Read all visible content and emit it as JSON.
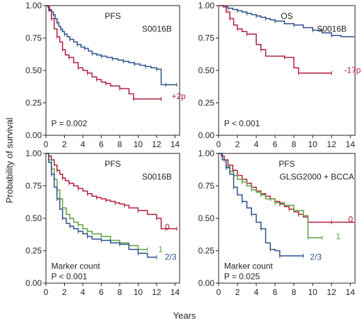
{
  "figure": {
    "ylabel": "Probability of survival",
    "xlabel": "Years"
  },
  "chart_data": [
    {
      "type": "line",
      "title": "PFS",
      "cohort": "S0016B",
      "pvalue": "P = 0.002",
      "marker_label": "",
      "xlim": [
        0,
        14.5
      ],
      "ylim": [
        0,
        1
      ],
      "xticks": [
        "0",
        "2",
        "4",
        "6",
        "8",
        "10",
        "12",
        "14"
      ],
      "yticks": [
        "0.00",
        "0.25",
        "0.50",
        "0.75",
        "1.00"
      ],
      "series": [
        {
          "label": "",
          "color": "#2b4f8a",
          "x": [
            0,
            0.2,
            0.4,
            0.6,
            0.8,
            1.0,
            1.2,
            1.4,
            1.6,
            1.8,
            2.0,
            2.3,
            2.6,
            3.0,
            3.4,
            3.8,
            4.2,
            4.6,
            5.0,
            5.5,
            6.0,
            6.6,
            7.2,
            7.8,
            8.4,
            9.0,
            9.6,
            10.2,
            10.8,
            11.4,
            12.0,
            12.5,
            13.0,
            13.5,
            14.2
          ],
          "y": [
            1.0,
            0.99,
            0.97,
            0.95,
            0.93,
            0.9,
            0.87,
            0.84,
            0.82,
            0.8,
            0.78,
            0.76,
            0.74,
            0.72,
            0.7,
            0.68,
            0.67,
            0.65,
            0.63,
            0.62,
            0.61,
            0.6,
            0.59,
            0.58,
            0.57,
            0.56,
            0.55,
            0.54,
            0.53,
            0.52,
            0.51,
            0.39,
            0.39,
            0.39,
            0.39
          ]
        },
        {
          "label": "+2p",
          "color": "#b01e3c",
          "x": [
            0,
            0.3,
            0.6,
            0.9,
            1.2,
            1.5,
            1.8,
            2.1,
            2.5,
            3.0,
            3.5,
            4.0,
            4.5,
            5.0,
            5.5,
            6.0,
            6.5,
            7.0,
            8.0,
            9.0,
            9.5,
            12.5
          ],
          "y": [
            1.0,
            0.96,
            0.9,
            0.82,
            0.76,
            0.72,
            0.66,
            0.62,
            0.6,
            0.56,
            0.52,
            0.5,
            0.48,
            0.45,
            0.43,
            0.41,
            0.4,
            0.38,
            0.36,
            0.32,
            0.28,
            0.28
          ]
        }
      ]
    },
    {
      "type": "line",
      "title": "OS",
      "cohort": "S0016B",
      "pvalue": "P < 0.001",
      "marker_label": "",
      "xlim": [
        0,
        14.5
      ],
      "ylim": [
        0,
        1
      ],
      "xticks": [
        "0",
        "2",
        "4",
        "6",
        "8",
        "10",
        "12",
        "14"
      ],
      "yticks": [
        "0.00",
        "0.25",
        "0.50",
        "0.75",
        "1.00"
      ],
      "series": [
        {
          "label": "",
          "color": "#2b4f8a",
          "x": [
            0,
            0.5,
            1.0,
            1.5,
            2.0,
            2.5,
            3.0,
            3.5,
            4.0,
            4.5,
            5.0,
            5.5,
            6.0,
            7.0,
            8.0,
            9.0,
            10.0,
            11.0,
            12.0,
            13.0,
            14.5
          ],
          "y": [
            1.0,
            0.99,
            0.98,
            0.97,
            0.96,
            0.95,
            0.94,
            0.93,
            0.92,
            0.91,
            0.9,
            0.89,
            0.88,
            0.86,
            0.85,
            0.83,
            0.81,
            0.79,
            0.77,
            0.76,
            0.76
          ]
        },
        {
          "label": "-17p",
          "color": "#b01e3c",
          "x": [
            0,
            0.8,
            1.2,
            1.6,
            2.0,
            2.5,
            3.0,
            4.0,
            4.5,
            5.0,
            7.0,
            8.0,
            8.5,
            12.0
          ],
          "y": [
            1.0,
            0.95,
            0.9,
            0.85,
            0.82,
            0.8,
            0.78,
            0.7,
            0.66,
            0.61,
            0.6,
            0.52,
            0.48,
            0.48
          ]
        }
      ]
    },
    {
      "type": "line",
      "title": "PFS",
      "cohort": "S0016B",
      "pvalue": "P < 0.001",
      "marker_label": "Marker count",
      "xlim": [
        0,
        14.5
      ],
      "ylim": [
        0,
        1
      ],
      "xticks": [
        "0",
        "2",
        "4",
        "6",
        "8",
        "10",
        "12",
        "14"
      ],
      "yticks": [
        "0.00",
        "0.25",
        "0.50",
        "0.75",
        "1.00"
      ],
      "series": [
        {
          "label": "0",
          "color": "#b01e3c",
          "x": [
            0,
            0.3,
            0.6,
            0.9,
            1.2,
            1.5,
            1.8,
            2.1,
            2.5,
            3.0,
            3.5,
            4.0,
            4.5,
            5.0,
            5.5,
            6.0,
            6.5,
            7.0,
            7.5,
            8.0,
            8.5,
            9.0,
            10.0,
            11.0,
            12.0,
            12.5,
            13.0,
            14.2
          ],
          "y": [
            1.0,
            0.98,
            0.95,
            0.91,
            0.87,
            0.84,
            0.81,
            0.79,
            0.77,
            0.75,
            0.73,
            0.71,
            0.69,
            0.67,
            0.66,
            0.65,
            0.64,
            0.63,
            0.62,
            0.61,
            0.6,
            0.58,
            0.56,
            0.53,
            0.5,
            0.42,
            0.42,
            0.42
          ]
        },
        {
          "label": "1",
          "color": "#5aa33c",
          "x": [
            0,
            0.3,
            0.6,
            0.9,
            1.2,
            1.5,
            1.8,
            2.2,
            2.6,
            3.0,
            3.5,
            4.0,
            4.5,
            5.0,
            6.0,
            7.0,
            8.0,
            9.0,
            10.0,
            11.0
          ],
          "y": [
            1.0,
            0.95,
            0.88,
            0.8,
            0.72,
            0.65,
            0.58,
            0.53,
            0.5,
            0.47,
            0.45,
            0.42,
            0.4,
            0.38,
            0.36,
            0.33,
            0.31,
            0.29,
            0.26,
            0.26
          ]
        },
        {
          "label": "2/3",
          "color": "#2b4f8a",
          "x": [
            0,
            0.3,
            0.6,
            0.9,
            1.2,
            1.5,
            1.8,
            2.2,
            2.6,
            3.0,
            3.5,
            4.0,
            4.5,
            5.0,
            6.0,
            7.0,
            8.0,
            9.0,
            10.0,
            11.0,
            12.0
          ],
          "y": [
            1.0,
            0.93,
            0.84,
            0.74,
            0.65,
            0.57,
            0.5,
            0.46,
            0.44,
            0.42,
            0.4,
            0.38,
            0.36,
            0.34,
            0.33,
            0.31,
            0.3,
            0.26,
            0.23,
            0.2,
            0.2
          ]
        }
      ]
    },
    {
      "type": "line",
      "title": "PFS",
      "cohort": "GLSG2000 + BCCA",
      "pvalue": "P = 0.025",
      "marker_label": "Marker count",
      "xlim": [
        0,
        14.5
      ],
      "ylim": [
        0,
        1
      ],
      "xticks": [
        "0",
        "2",
        "4",
        "6",
        "8",
        "10",
        "12",
        "14"
      ],
      "yticks": [
        "0.00",
        "0.25",
        "0.50",
        "0.75",
        "1.00"
      ],
      "series": [
        {
          "label": "0",
          "color": "#b01e3c",
          "x": [
            0,
            0.3,
            0.6,
            1.0,
            1.5,
            2.0,
            2.5,
            3.0,
            3.5,
            4.0,
            4.5,
            5.0,
            5.5,
            6.0,
            6.5,
            7.0,
            7.5,
            8.0,
            8.5,
            9.0,
            9.5,
            10.0,
            12.0,
            14.5
          ],
          "y": [
            1.0,
            0.98,
            0.95,
            0.91,
            0.87,
            0.83,
            0.8,
            0.77,
            0.74,
            0.71,
            0.69,
            0.67,
            0.65,
            0.63,
            0.61,
            0.59,
            0.57,
            0.55,
            0.53,
            0.51,
            0.47,
            0.47,
            0.47,
            0.47
          ]
        },
        {
          "label": "1",
          "color": "#5aa33c",
          "x": [
            0,
            0.4,
            0.8,
            1.2,
            1.6,
            2.0,
            2.5,
            3.0,
            3.5,
            4.0,
            4.5,
            5.0,
            6.0,
            7.0,
            8.0,
            9.0,
            9.5,
            11.0
          ],
          "y": [
            1.0,
            0.95,
            0.9,
            0.86,
            0.83,
            0.8,
            0.78,
            0.75,
            0.72,
            0.7,
            0.68,
            0.65,
            0.62,
            0.6,
            0.56,
            0.52,
            0.35,
            0.35
          ]
        },
        {
          "label": "2/3",
          "color": "#2b4f8a",
          "x": [
            0,
            0.4,
            0.8,
            1.2,
            1.6,
            2.0,
            2.5,
            3.0,
            3.5,
            4.0,
            4.5,
            5.0,
            5.5,
            6.0,
            6.5,
            7.0,
            9.0
          ],
          "y": [
            1.0,
            0.95,
            0.89,
            0.84,
            0.74,
            0.68,
            0.63,
            0.58,
            0.53,
            0.47,
            0.42,
            0.31,
            0.26,
            0.25,
            0.21,
            0.21,
            0.21
          ]
        }
      ]
    }
  ]
}
